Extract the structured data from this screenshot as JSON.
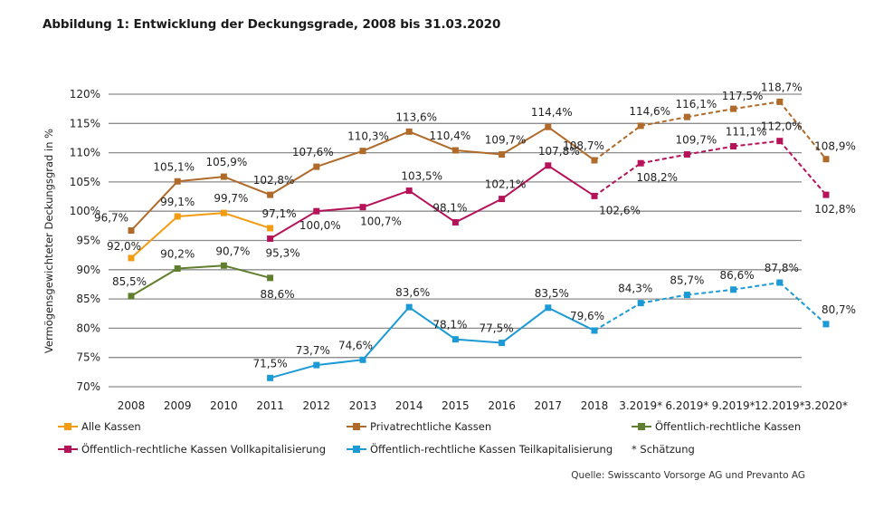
{
  "title": "Abbildung 1: Entwicklung der Deckungsgrade, 2008 bis 31.03.2020",
  "source": "Quelle: Swisscanto Vorsorge AG und Prevanto AG",
  "legend_note": "* Schätzung",
  "chart_data": {
    "type": "line",
    "title": "Abbildung 1: Entwicklung der Deckungsgrade, 2008 bis 31.03.2020",
    "xlabel": "",
    "ylabel": "Vermögensgewichteter Deckungsgrad in %",
    "ylim": [
      70,
      120
    ],
    "yticks": [
      "70%",
      "75%",
      "80%",
      "85%",
      "90%",
      "95%",
      "100%",
      "105%",
      "110%",
      "115%",
      "120%"
    ],
    "ytick_values": [
      70,
      75,
      80,
      85,
      90,
      95,
      100,
      105,
      110,
      115,
      120
    ],
    "grid": true,
    "legend_position": "bottom",
    "categories": [
      "2008",
      "2009",
      "2010",
      "2011",
      "2012",
      "2013",
      "2014",
      "2015",
      "2016",
      "2017",
      "2018",
      "3.2019*",
      "6.2019*",
      "9.2019*",
      "12.2019*",
      "3.2020*"
    ],
    "estimate_from_index": 10,
    "series": [
      {
        "name": "Alle Kassen",
        "color": "#f39c12",
        "values": [
          92.0,
          99.1,
          99.7,
          97.1,
          null,
          null,
          null,
          null,
          null,
          null,
          null,
          null,
          null,
          null,
          null,
          null
        ],
        "labels": [
          "92,0%",
          "99,1%",
          "99,7%",
          "97,1%",
          null,
          null,
          null,
          null,
          null,
          null,
          null,
          null,
          null,
          null,
          null,
          null
        ]
      },
      {
        "name": "Privatrechtliche Kassen",
        "color": "#b06a2a",
        "values": [
          96.7,
          105.1,
          105.9,
          102.8,
          107.6,
          110.3,
          113.6,
          110.4,
          109.7,
          114.4,
          108.7,
          114.6,
          116.1,
          117.5,
          118.7,
          108.9
        ],
        "labels": [
          "96,7%",
          "105,1%",
          "105,9%",
          "102,8%",
          "107,6%",
          "110,3%",
          "113,6%",
          "110,4%",
          "109,7%",
          "114,4%",
          "108,7%",
          "114,6%",
          "116,1%",
          "117,5%",
          "118,7%",
          "108,9%"
        ]
      },
      {
        "name": "Öffentlich-rechtliche Kassen",
        "color": "#5f7f2e",
        "values": [
          85.5,
          90.2,
          90.7,
          88.6,
          null,
          null,
          null,
          null,
          null,
          null,
          null,
          null,
          null,
          null,
          null,
          null
        ],
        "labels": [
          "85,5%",
          "90,2%",
          "90,7%",
          "88,6%",
          null,
          null,
          null,
          null,
          null,
          null,
          null,
          null,
          null,
          null,
          null,
          null
        ]
      },
      {
        "name": "Öffentlich-rechtliche Kassen Vollkapitalisierung",
        "color": "#b5125a",
        "values": [
          null,
          null,
          null,
          95.3,
          100.0,
          100.7,
          103.5,
          98.1,
          102.1,
          107.8,
          102.6,
          108.2,
          109.7,
          111.1,
          112.0,
          102.8
        ],
        "labels": [
          null,
          null,
          null,
          "95,3%",
          "100,0%",
          "100,7%",
          "103,5%",
          "98,1%",
          "102,1%",
          "107,8%",
          "102,6%",
          "108,2%",
          "109,7%",
          "111,1%",
          "112,0%",
          "102,8%"
        ]
      },
      {
        "name": "Öffentlich-rechtliche Kassen Teilkapitalisierung",
        "color": "#1b9ad6",
        "values": [
          null,
          null,
          null,
          71.5,
          73.7,
          74.6,
          83.6,
          78.1,
          77.5,
          83.5,
          79.6,
          84.3,
          85.7,
          86.6,
          87.8,
          80.7
        ],
        "labels": [
          null,
          null,
          null,
          "71,5%",
          "73,7%",
          "74,6%",
          "83,6%",
          "78,1%",
          "77,5%",
          "83,5%",
          "79,6%",
          "84,3%",
          "85,7%",
          "86,6%",
          "87,8%",
          "80,7%"
        ]
      }
    ]
  }
}
